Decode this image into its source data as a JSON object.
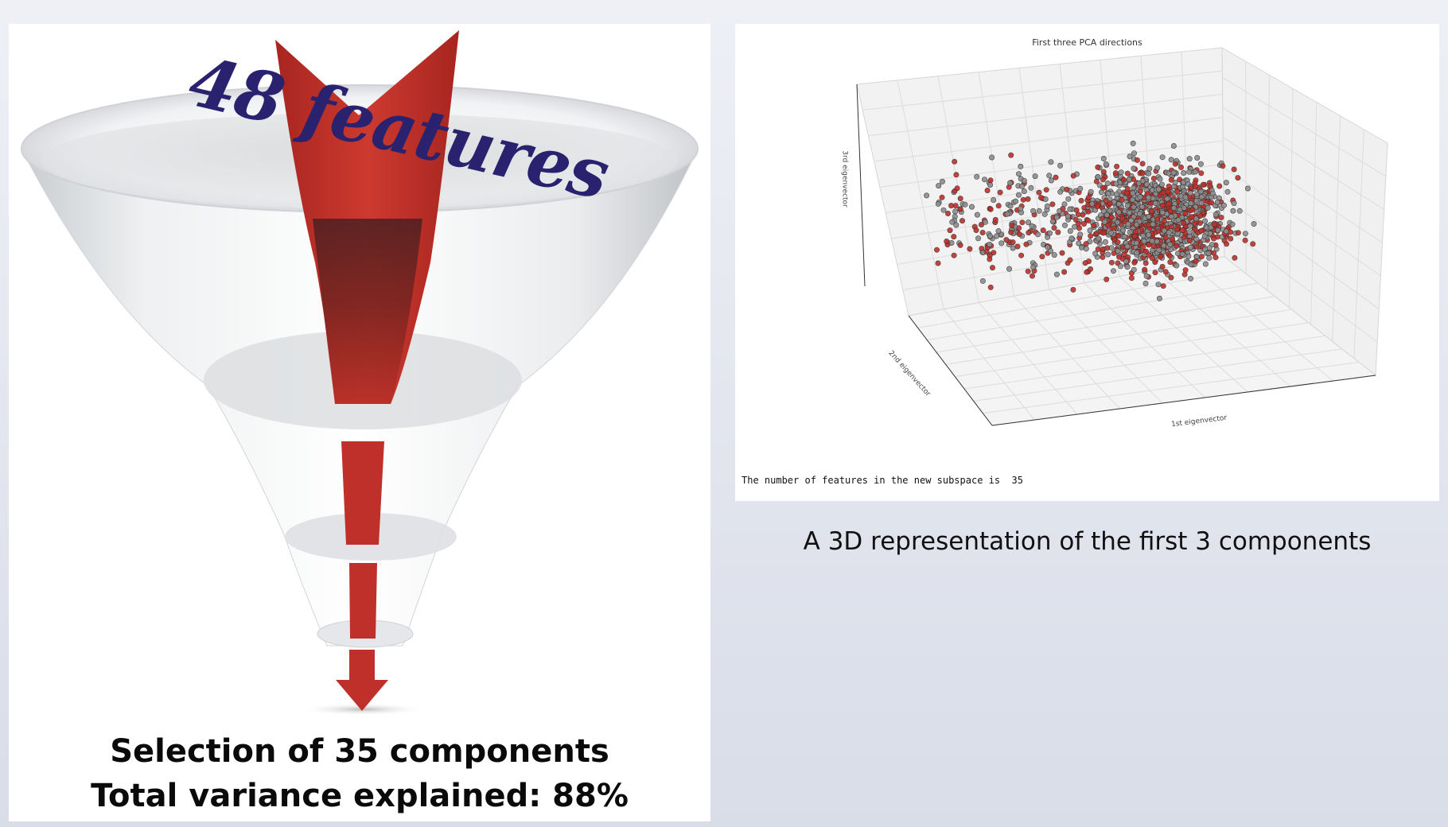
{
  "left_panel": {
    "overlay_title": "48 features",
    "summary_line1": "Selection of 35 components",
    "summary_line2": "Total variance explained: 88%"
  },
  "right_panel": {
    "plot_title": "First three PCA directions",
    "axis_z_label": "3rd eigenvector",
    "axis_y_label": "2nd eigenvector",
    "axis_x_label": "1st eigenvector",
    "console_output": "The number of features in the new subspace is  35",
    "caption": "A 3D representation of the first 3 components"
  },
  "colors": {
    "background": "#e4e7ef",
    "funnel_arrow": "#c0302a",
    "script_title": "#2a226e",
    "point_red": "#c0302a",
    "point_grey": "#8e8e8e"
  },
  "icons": [
    "funnel-icon",
    "down-arrow-icon"
  ]
}
